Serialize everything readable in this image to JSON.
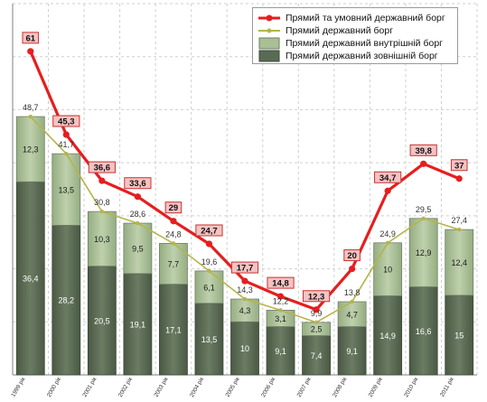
{
  "chart_data": {
    "type": "bar",
    "stacked": true,
    "categories": [
      "1999 рік",
      "2000 рік",
      "2001 рік",
      "2002 рік",
      "2003 рік",
      "2004 рік",
      "2005 рік",
      "2006 рік",
      "2007 рік",
      "2008 рік",
      "2009 рік",
      "2010 рік",
      "2011 рік"
    ],
    "series": [
      {
        "name": "Прямий державний зовнішній борг",
        "kind": "bar",
        "color": "#5a6b53",
        "values": [
          36.4,
          28.2,
          20.5,
          19.1,
          17.1,
          13.5,
          10,
          9.1,
          7.4,
          9.1,
          14.9,
          16.6,
          15
        ],
        "labels": [
          "36,4",
          "28,2",
          "20,5",
          "19,1",
          "17,1",
          "13,5",
          "10",
          "9,1",
          "7,4",
          "9,1",
          "14,9",
          "16,6",
          "15"
        ]
      },
      {
        "name": "Прямий державний внутрішній борг",
        "kind": "bar",
        "color": "#a9bf96",
        "values": [
          12.3,
          13.5,
          10.3,
          9.5,
          7.7,
          6.1,
          4.3,
          3.1,
          2.5,
          4.7,
          10,
          12.9,
          12.4
        ],
        "labels": [
          "12,3",
          "13,5",
          "10,3",
          "9,5",
          "7,7",
          "6,1",
          "4,3",
          "3,1",
          "2,5",
          "4,7",
          "10",
          "12,9",
          "12,4"
        ]
      },
      {
        "name": "Прямий державний борг",
        "kind": "line",
        "color": "#b5b54a",
        "values": [
          48.7,
          41.7,
          30.8,
          28.6,
          24.8,
          19.6,
          14.3,
          12.2,
          9.9,
          13.8,
          24.9,
          29.5,
          27.4
        ],
        "labels": [
          "48,7",
          "41,7",
          "30,8",
          "28,6",
          "24,8",
          "19,6",
          "14,3",
          "12,2",
          "9,9",
          "13,8",
          "24,9",
          "29,5",
          "27,4"
        ]
      },
      {
        "name": "Прямий та умовний державний борг",
        "kind": "line",
        "color": "#e61e1e",
        "values": [
          61,
          45.3,
          36.6,
          33.6,
          29,
          24.7,
          17.7,
          14.8,
          12.3,
          20,
          34.7,
          39.8,
          37
        ],
        "labels": [
          "61",
          "45,3",
          "36,6",
          "33,6",
          "29",
          "24,7",
          "17,7",
          "14,8",
          "12,3",
          "20",
          "34,7",
          "39,8",
          "37"
        ]
      }
    ],
    "ylim": [
      0,
      70
    ],
    "grid": true,
    "legend": "top-right"
  },
  "legend": [
    {
      "label": "Прямий та умовний державний борг",
      "color": "#e61e1e",
      "type": "line-marker"
    },
    {
      "label": "Прямий державний борг",
      "color": "#b5b54a",
      "type": "line-marker"
    },
    {
      "label": "Прямий державний внутрішній борг",
      "color": "#a9bf96",
      "type": "box"
    },
    {
      "label": "Прямий державний зовнішній борг",
      "color": "#5a6b53",
      "type": "box"
    }
  ]
}
